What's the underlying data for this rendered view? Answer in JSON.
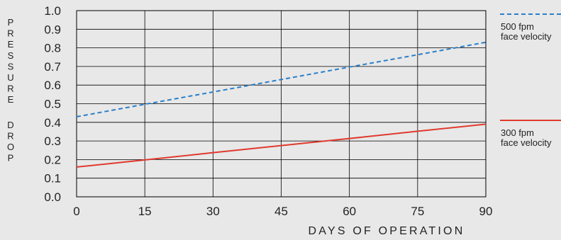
{
  "chart_data": {
    "type": "line",
    "xlabel": "DAYS OF OPERATION",
    "ylabel": "PRESSURE DROP",
    "xlim": [
      0,
      90
    ],
    "ylim": [
      0,
      1.0
    ],
    "x_ticks": [
      0,
      15,
      30,
      45,
      60,
      75,
      90
    ],
    "y_ticks": [
      "0.0",
      "0.1",
      "0.2",
      "0.3",
      "0.4",
      "0.5",
      "0.6",
      "0.7",
      "0.8",
      "0.9",
      "1.0"
    ],
    "grid": true,
    "legend_position": "right",
    "series": [
      {
        "name": "500 fpm face velocity",
        "label_lines": [
          "500 fpm",
          "face velocity"
        ],
        "style": "dashed",
        "color": "#2a7fc9",
        "x": [
          0,
          15,
          30,
          45,
          60,
          75,
          90
        ],
        "y": [
          0.43,
          0.497,
          0.563,
          0.63,
          0.697,
          0.763,
          0.83
        ]
      },
      {
        "name": "300 fpm face velocity",
        "label_lines": [
          "300 fpm",
          "face velocity"
        ],
        "style": "solid",
        "color": "#e03a2e",
        "x": [
          0,
          15,
          30,
          45,
          60,
          75,
          90
        ],
        "y": [
          0.16,
          0.198,
          0.237,
          0.275,
          0.313,
          0.352,
          0.39
        ]
      }
    ]
  }
}
